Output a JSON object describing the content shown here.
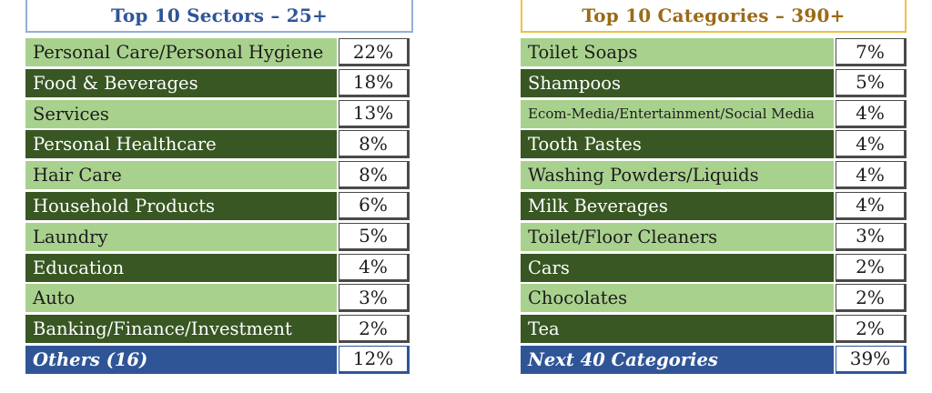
{
  "sectors": {
    "title": "Top 10 Sectors – 25+",
    "rows": [
      {
        "label": "Personal Care/Personal Hygiene",
        "value": "22%"
      },
      {
        "label": "Food & Beverages",
        "value": "18%"
      },
      {
        "label": "Services",
        "value": "13%"
      },
      {
        "label": "Personal Healthcare",
        "value": "8%"
      },
      {
        "label": "Hair Care",
        "value": "8%"
      },
      {
        "label": "Household Products",
        "value": "6%"
      },
      {
        "label": "Laundry",
        "value": "5%"
      },
      {
        "label": "Education",
        "value": "4%"
      },
      {
        "label": "Auto",
        "value": "3%"
      },
      {
        "label": "Banking/Finance/Investment",
        "value": "2%"
      }
    ],
    "others": {
      "label": "Others (16)",
      "value": "12%"
    }
  },
  "categories": {
    "title": "Top 10 Categories – 390+",
    "rows": [
      {
        "label": "Toilet Soaps",
        "value": "7%"
      },
      {
        "label": "Shampoos",
        "value": "5%"
      },
      {
        "label": "Ecom-Media/Entertainment/Social Media",
        "value": "4%"
      },
      {
        "label": "Tooth Pastes",
        "value": "4%"
      },
      {
        "label": "Washing Powders/Liquids",
        "value": "4%"
      },
      {
        "label": "Milk Beverages",
        "value": "4%"
      },
      {
        "label": "Toilet/Floor Cleaners",
        "value": "3%"
      },
      {
        "label": "Cars",
        "value": "2%"
      },
      {
        "label": "Chocolates",
        "value": "2%"
      },
      {
        "label": "Tea",
        "value": "2%"
      }
    ],
    "others": {
      "label": "Next 40 Categories",
      "value": "39%"
    }
  },
  "colors": {
    "light": "#a9d18e",
    "dark": "#385723",
    "others": "#2f5597"
  }
}
